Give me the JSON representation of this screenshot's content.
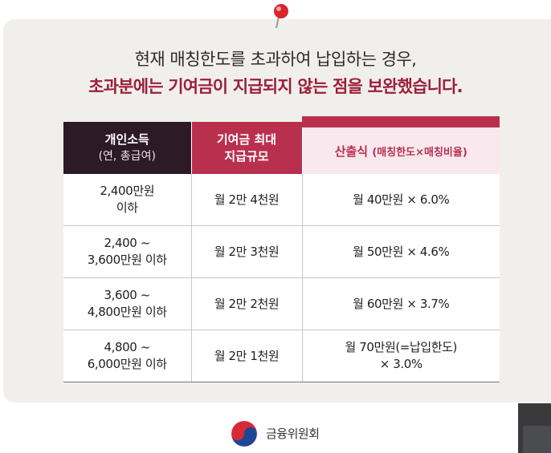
{
  "headline": {
    "line1": "현재 매칭한도를 초과하여 납입하는 경우,",
    "line2": "초과분에는 기여금이 지급되지 않는 점을 보완했습니다."
  },
  "table": {
    "headers": {
      "income": {
        "main": "개인소득",
        "sub": "(연, 총급여)"
      },
      "contribution": {
        "line1": "기여금 최대",
        "line2": "지급규모"
      },
      "formula": {
        "main": "산출식",
        "sub": "(매칭한도×매칭비율)"
      }
    },
    "rows": [
      {
        "income1": "2,400만원",
        "income2": "이하",
        "amount": "월 2만 4천원",
        "formula1": "월 40만원 × 6.0%",
        "formula2": ""
      },
      {
        "income1": "2,400 ~",
        "income2": "3,600만원 이하",
        "amount": "월 2만 3천원",
        "formula1": "월 50만원 × 4.6%",
        "formula2": ""
      },
      {
        "income1": "3,600 ~",
        "income2": "4,800만원 이하",
        "amount": "월 2만 2천원",
        "formula1": "월 60만원 × 3.7%",
        "formula2": ""
      },
      {
        "income1": "4,800 ~",
        "income2": "6,000만원 이하",
        "amount": "월 2만 1천원",
        "formula1": "월 70만원(=납입한도)",
        "formula2": "× 3.0%"
      }
    ]
  },
  "footer": {
    "org_name": "금융위원회"
  },
  "colors": {
    "accent": "#b9304f",
    "header_dark": "#2c1a26",
    "headline_red": "#9b1f3a"
  }
}
